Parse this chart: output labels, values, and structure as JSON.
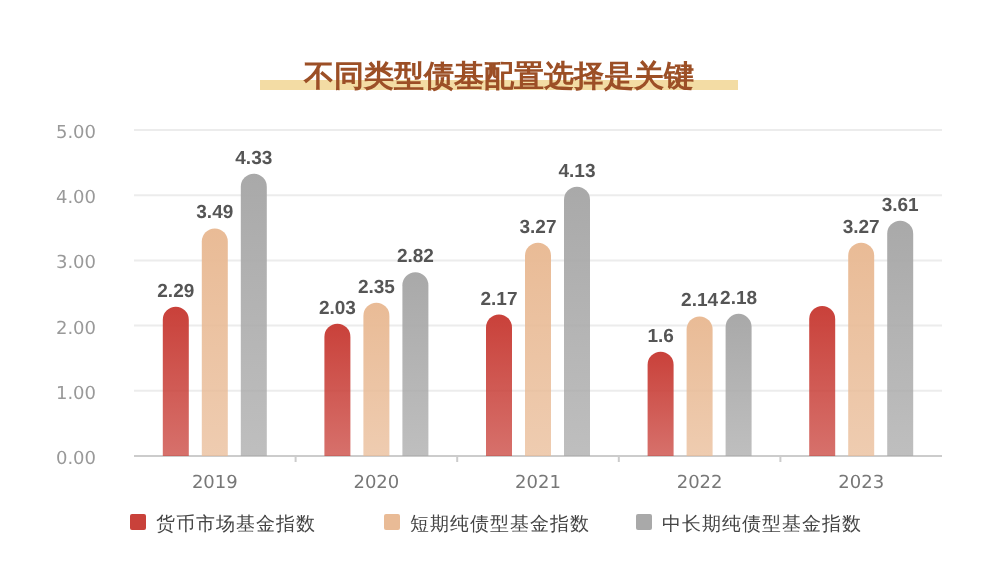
{
  "chart_data": {
    "type": "bar",
    "title": "不同类型债基配置选择是关键",
    "categories": [
      "2019",
      "2020",
      "2021",
      "2022",
      "2023"
    ],
    "series": [
      {
        "name": "货币市场基金指数",
        "color": "#c9413a",
        "values": [
          2.29,
          2.03,
          2.17,
          1.6,
          2.3
        ],
        "value_labels": [
          "2.29",
          "2.03",
          "2.17",
          "1.6",
          null
        ]
      },
      {
        "name": "短期纯债型基金指数",
        "color": "#e9bb96",
        "values": [
          3.49,
          2.35,
          3.27,
          2.14,
          3.27
        ],
        "value_labels": [
          "3.49",
          "2.35",
          "3.27",
          "2.14",
          "3.27"
        ]
      },
      {
        "name": "中长期纯债型基金指数",
        "color": "#a9a9a9",
        "values": [
          4.33,
          2.82,
          4.13,
          2.18,
          3.61
        ],
        "value_labels": [
          "4.33",
          "2.82",
          "4.13",
          "2.18",
          "3.61"
        ]
      }
    ],
    "ylim": [
      0,
      5
    ],
    "yticks": [
      {
        "value": 0,
        "label": "0.00"
      },
      {
        "value": 1,
        "label": "1.00"
      },
      {
        "value": 2,
        "label": "2.00"
      },
      {
        "value": 3,
        "label": "3.00"
      },
      {
        "value": 4,
        "label": "4.00"
      },
      {
        "value": 5,
        "label": "5.00"
      }
    ],
    "grid": "y",
    "legend": "bottom"
  }
}
